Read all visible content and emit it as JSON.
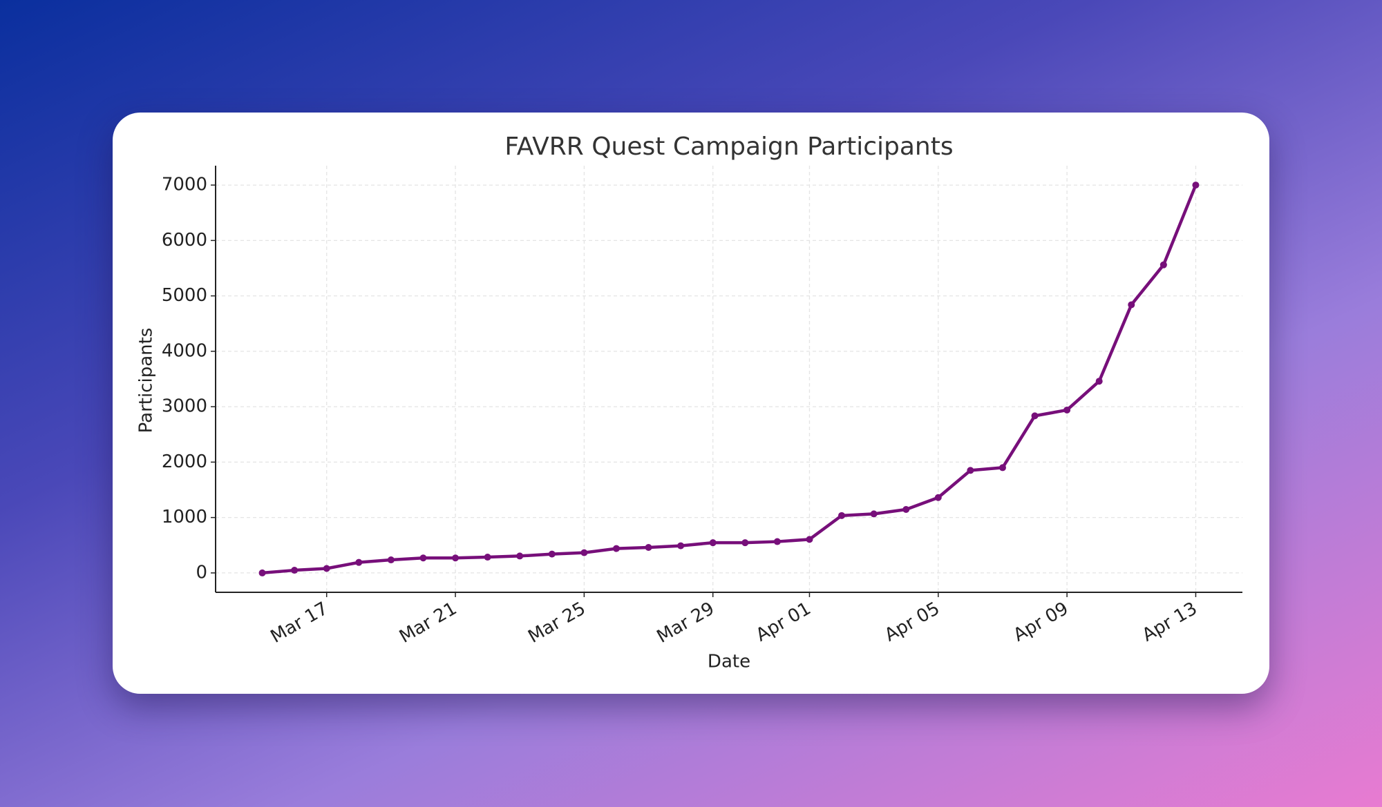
{
  "chart_data": {
    "type": "line",
    "title": "FAVRR Quest Campaign Participants",
    "x_label": "Date",
    "y_label": "Participants",
    "x": [
      "Mar 15",
      "Mar 16",
      "Mar 17",
      "Mar 18",
      "Mar 19",
      "Mar 20",
      "Mar 21",
      "Mar 22",
      "Mar 23",
      "Mar 24",
      "Mar 25",
      "Mar 26",
      "Mar 27",
      "Mar 28",
      "Mar 29",
      "Mar 30",
      "Mar 31",
      "Apr 01",
      "Apr 02",
      "Apr 03",
      "Apr 04",
      "Apr 05",
      "Apr 06",
      "Apr 07",
      "Apr 08",
      "Apr 09",
      "Apr 10",
      "Apr 11",
      "Apr 12",
      "Apr 13"
    ],
    "series": [
      {
        "name": "Participants",
        "color": "#770f7a",
        "values": [
          0,
          48,
          80,
          190,
          235,
          270,
          270,
          285,
          305,
          340,
          365,
          440,
          460,
          490,
          545,
          545,
          565,
          605,
          1035,
          1065,
          1145,
          1360,
          1850,
          1900,
          2835,
          2940,
          3460,
          4840,
          5560,
          7000
        ]
      }
    ],
    "xticks": [
      "Mar 17",
      "Mar 21",
      "Mar 25",
      "Mar 29",
      "Apr 01",
      "Apr 05",
      "Apr 09",
      "Apr 13"
    ],
    "ylim": [
      -350,
      7350
    ],
    "yticks": [
      0,
      1000,
      2000,
      3000,
      4000,
      5000,
      6000,
      7000
    ],
    "grid": true
  }
}
